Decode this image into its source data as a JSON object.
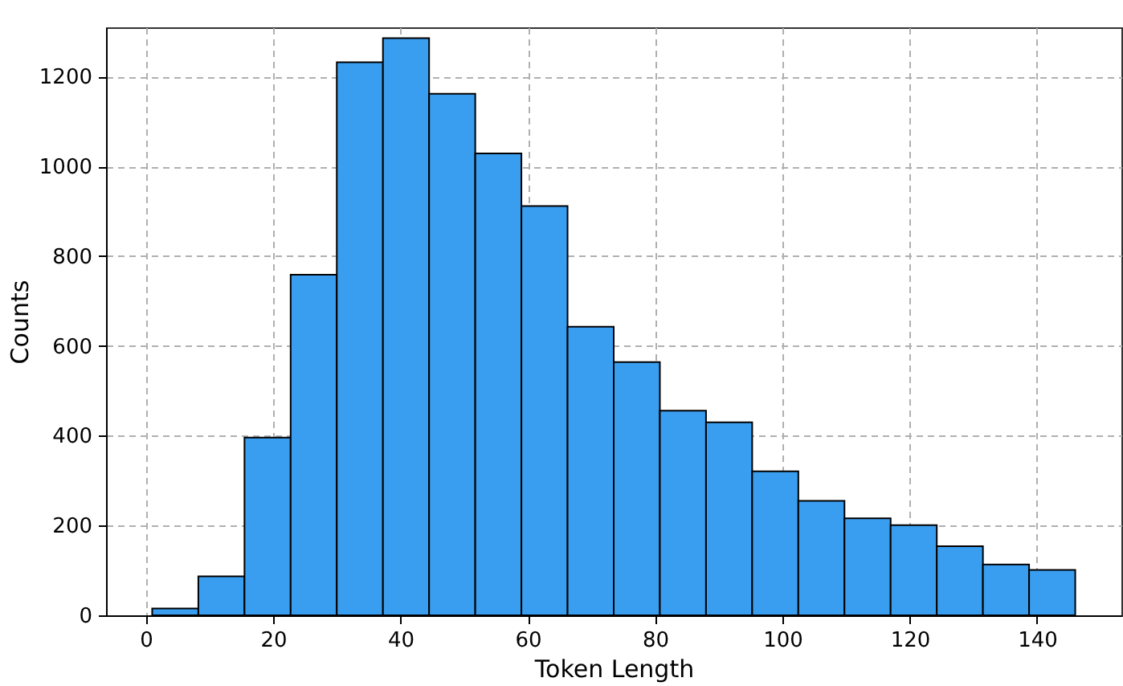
{
  "chart_data": {
    "type": "histogram",
    "xlabel": "Token Length",
    "ylabel": "Counts",
    "bins": [
      1,
      8.25,
      15.5,
      22.75,
      30,
      37.25,
      44.5,
      51.75,
      59,
      66.25,
      73.5,
      80.75,
      88,
      95.25,
      102.5,
      109.75,
      117,
      124.25,
      131.5,
      138.75,
      146
    ],
    "values": [
      15,
      87,
      396,
      759,
      1232,
      1286,
      1162,
      1029,
      912,
      643,
      564,
      456,
      430,
      321,
      255,
      216,
      201,
      154,
      113,
      101
    ],
    "color": "#3a9ef0",
    "xlim": [
      -6.25,
      153.25
    ],
    "xticks": [
      0,
      20,
      40,
      60,
      80,
      100,
      120,
      140
    ],
    "ylim": [
      0,
      1310
    ],
    "yticks": [
      0,
      200,
      400,
      600,
      800,
      1000,
      1200
    ],
    "grid": true,
    "line_style": "dashed"
  }
}
